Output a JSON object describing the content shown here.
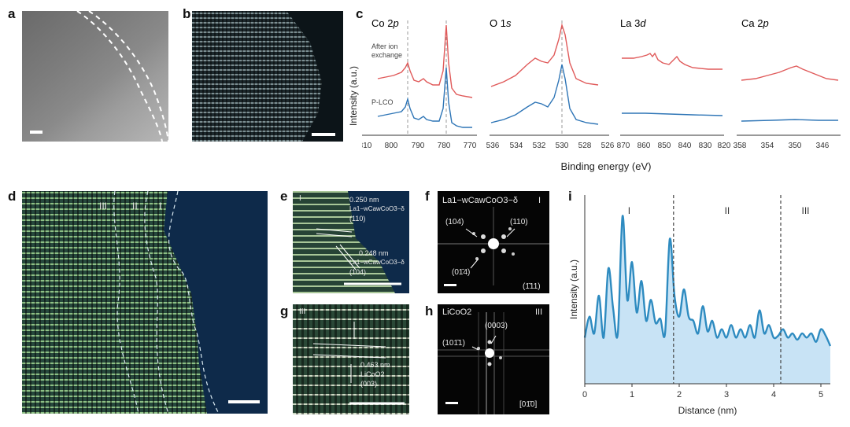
{
  "panels": {
    "a": "a",
    "b": "b",
    "c": "c",
    "d": "d",
    "e": "e",
    "f": "f",
    "g": "g",
    "h": "h",
    "i": "i"
  },
  "xps": {
    "xlabel": "Binding energy (eV)",
    "ylabel": "Intensity (a.u.)",
    "series_labels": {
      "after": "After ion exchange",
      "plco": "P-LCO"
    },
    "colors": {
      "after": "#e05a5a",
      "plco": "#2e75b6",
      "dashed": "#9a9a9a"
    },
    "subplots": [
      {
        "title": "Co 2p",
        "ticks": [
          "810",
          "800",
          "790",
          "780",
          "770"
        ]
      },
      {
        "title": "O 1s",
        "ticks": [
          "536",
          "534",
          "532",
          "530",
          "528",
          "526"
        ]
      },
      {
        "title": "La 3d",
        "ticks": [
          "870",
          "860",
          "850",
          "840",
          "830",
          "820"
        ]
      },
      {
        "title": "Ca 2p",
        "ticks": [
          "358",
          "354",
          "350",
          "346"
        ]
      }
    ]
  },
  "panel_d": {
    "regions": [
      "III",
      "II",
      "I"
    ]
  },
  "panel_e": {
    "d1": "0.250 nm",
    "phase1": "La1−wCawCoO3−δ",
    "plane1": "(110)",
    "d2": "0.248 nm",
    "phase2": "La1−wCawCoO3−δ",
    "plane2": "(104)",
    "region": "I"
  },
  "panel_f": {
    "phase": "La1−wCawCoO3−δ",
    "region": "I",
    "spots": [
      "(104)",
      "(110)",
      "(01̄4)"
    ],
    "zone": "(1̄11)"
  },
  "panel_g": {
    "region": "III",
    "d": "0.463 nm",
    "phase": "LiCoO2",
    "plane": "(003)"
  },
  "panel_h": {
    "phase": "LiCoO2",
    "region": "III",
    "spots": [
      "(0003)",
      "(101̄1)"
    ],
    "zone": "[01̄0]"
  },
  "chart_data": [
    {
      "type": "line",
      "title": "",
      "xlabel": "Distance (nm)",
      "ylabel": "Intensity (a.u.)",
      "xlim": [
        0,
        5.2
      ],
      "xticks": [
        "0",
        "1",
        "2",
        "3",
        "4",
        "5"
      ],
      "regions": [
        "I",
        "II",
        "III"
      ],
      "region_boundaries": [
        1.88,
        4.15
      ],
      "color": "#2e8bc0",
      "fill": "#c8e3f5",
      "x": [
        0,
        0.1,
        0.2,
        0.3,
        0.4,
        0.5,
        0.6,
        0.7,
        0.8,
        0.9,
        1.0,
        1.1,
        1.2,
        1.3,
        1.4,
        1.5,
        1.6,
        1.7,
        1.8,
        1.9,
        2.0,
        2.1,
        2.2,
        2.3,
        2.4,
        2.5,
        2.6,
        2.7,
        2.8,
        2.9,
        3.0,
        3.1,
        3.2,
        3.3,
        3.4,
        3.5,
        3.6,
        3.7,
        3.8,
        3.9,
        4.0,
        4.1,
        4.2,
        4.3,
        4.4,
        4.5,
        4.6,
        4.7,
        4.8,
        4.9,
        5.0,
        5.1,
        5.2
      ],
      "y": [
        0.22,
        0.32,
        0.24,
        0.42,
        0.22,
        0.55,
        0.36,
        0.24,
        0.8,
        0.4,
        0.58,
        0.34,
        0.49,
        0.3,
        0.4,
        0.29,
        0.31,
        0.24,
        0.69,
        0.42,
        0.32,
        0.45,
        0.32,
        0.3,
        0.24,
        0.37,
        0.25,
        0.3,
        0.22,
        0.26,
        0.22,
        0.28,
        0.22,
        0.26,
        0.22,
        0.28,
        0.22,
        0.35,
        0.24,
        0.28,
        0.22,
        0.23,
        0.26,
        0.22,
        0.24,
        0.21,
        0.24,
        0.22,
        0.24,
        0.2,
        0.26,
        0.23,
        0.18
      ]
    }
  ]
}
